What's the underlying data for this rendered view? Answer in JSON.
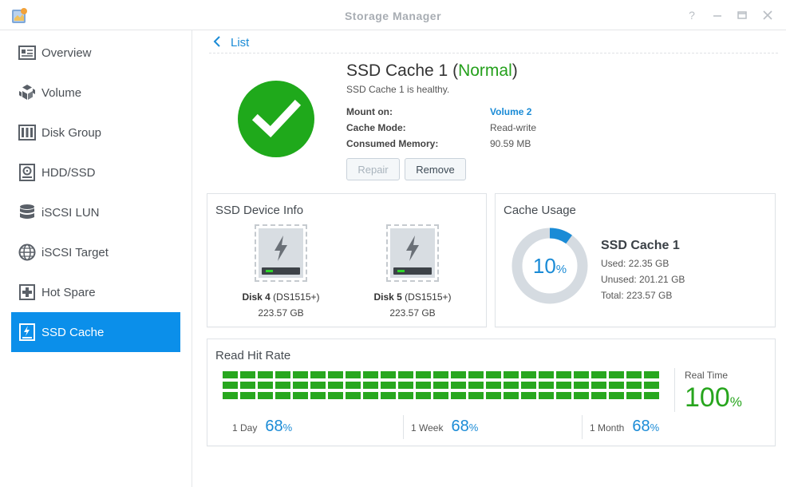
{
  "window": {
    "title": "Storage Manager",
    "controls": [
      "help-icon",
      "minimize-icon",
      "maximize-icon",
      "close-icon"
    ]
  },
  "sidebar": {
    "items": [
      {
        "label": "Overview",
        "icon": "overview-icon"
      },
      {
        "label": "Volume",
        "icon": "volume-icon"
      },
      {
        "label": "Disk Group",
        "icon": "disk-group-icon"
      },
      {
        "label": "HDD/SSD",
        "icon": "hdd-icon"
      },
      {
        "label": "iSCSI LUN",
        "icon": "iscsi-lun-icon"
      },
      {
        "label": "iSCSI Target",
        "icon": "iscsi-target-icon"
      },
      {
        "label": "Hot Spare",
        "icon": "hot-spare-icon"
      },
      {
        "label": "SSD Cache",
        "icon": "ssd-cache-icon",
        "active": true
      }
    ]
  },
  "header": {
    "back_label": "List"
  },
  "cache": {
    "name": "SSD Cache 1",
    "status_open": "(",
    "status": "Normal",
    "status_close": ")",
    "subtitle": "SSD Cache 1 is healthy.",
    "fields": [
      {
        "label": "Mount on:",
        "value": "Volume 2"
      },
      {
        "label": "Cache Mode:",
        "value": "Read-write"
      },
      {
        "label": "Consumed Memory:",
        "value": "90.59 MB"
      }
    ],
    "repair_label": "Repair",
    "remove_label": "Remove"
  },
  "device_info": {
    "title": "SSD Device Info",
    "disks": [
      {
        "name": "Disk 4",
        "model": "(DS1515+)",
        "size": "223.57 GB"
      },
      {
        "name": "Disk 5",
        "model": "(DS1515+)",
        "size": "223.57 GB"
      }
    ]
  },
  "usage": {
    "title": "Cache Usage",
    "percent": "10",
    "percent_sign": "%",
    "fraction": 0.1,
    "name": "SSD Cache 1",
    "used": "Used: 22.35 GB",
    "unused": "Unused: 201.21 GB",
    "total": "Total: 223.57 GB",
    "colors": {
      "used": "#1a8bd6",
      "unused": "#d5dbe1"
    }
  },
  "hit_rate": {
    "title": "Read Hit Rate",
    "realtime_label": "Real Time",
    "realtime_value": "100",
    "realtime_fraction": 1.0,
    "percent_sign": "%",
    "stats": [
      {
        "label": "1 Day",
        "value": "68"
      },
      {
        "label": "1 Week",
        "value": "68"
      },
      {
        "label": "1 Month",
        "value": "68"
      }
    ],
    "bar_color": "#28a71f"
  }
}
